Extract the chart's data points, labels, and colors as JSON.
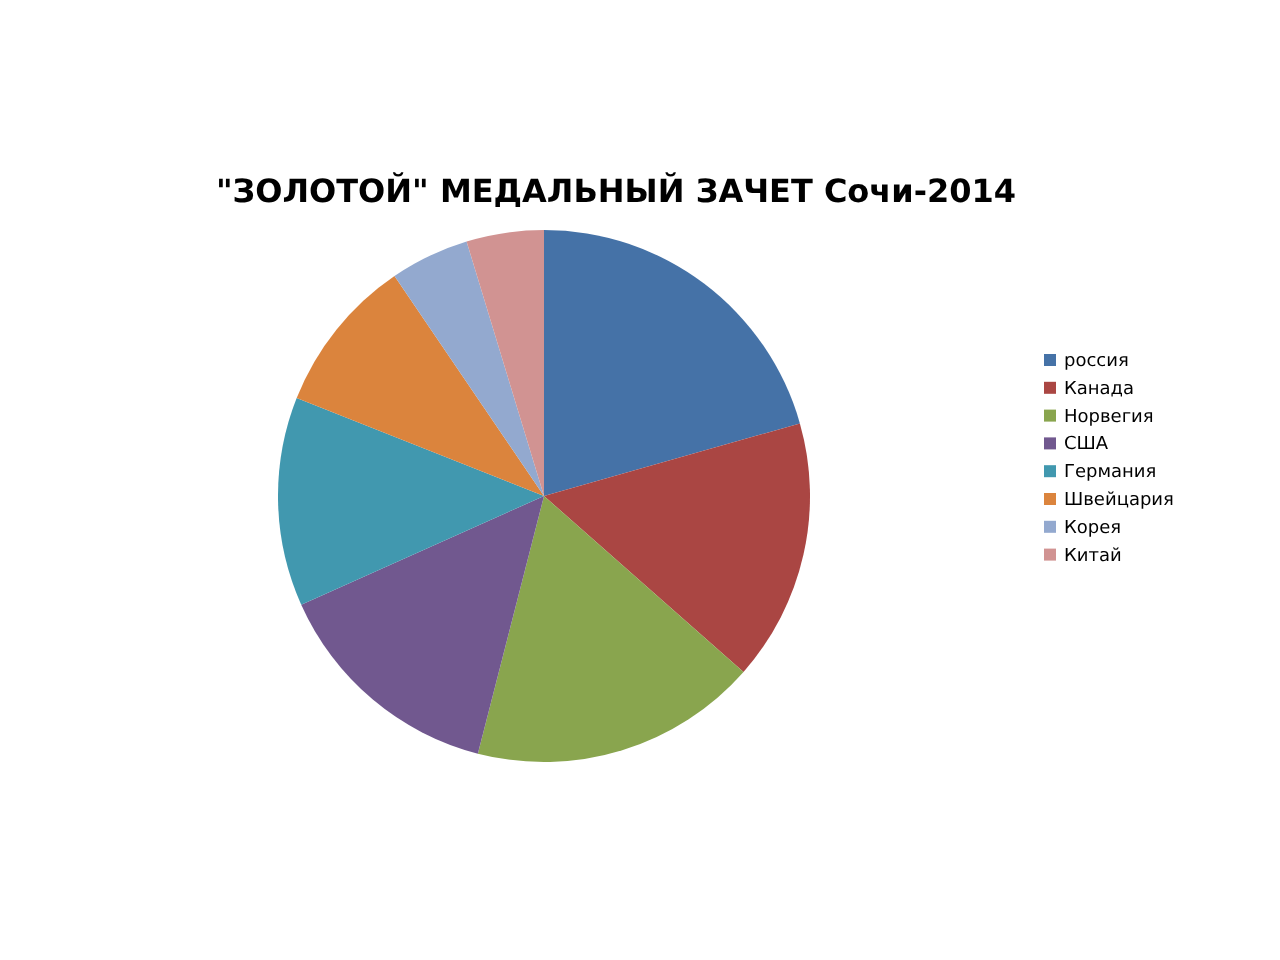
{
  "chart_data": {
    "type": "pie",
    "title": "\"ЗОЛОТОЙ\" МЕДАЛЬНЫЙ ЗАЧЕТ Сочи-2014",
    "categories": [
      "россия",
      "Канада",
      "Норвегия",
      "США",
      "Германия",
      "Швейцария",
      "Корея",
      "Китай"
    ],
    "values": [
      20.6,
      15.9,
      17.5,
      14.3,
      12.7,
      9.5,
      4.8,
      4.7
    ],
    "colors": [
      "#4572a7",
      "#aa4643",
      "#89a54e",
      "#71588f",
      "#4198af",
      "#db843d",
      "#93a9cf",
      "#d19392"
    ],
    "legend": "right"
  }
}
